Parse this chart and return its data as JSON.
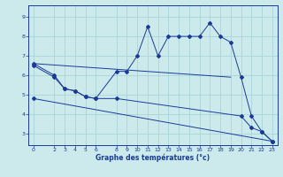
{
  "xlabel": "Graphe des températures (°c)",
  "bg_color": "#cce9ec",
  "grid_color": "#a8d4d8",
  "line_color": "#1a3a9a",
  "xlim": [
    -0.5,
    23.5
  ],
  "ylim": [
    2.4,
    9.6
  ],
  "yticks": [
    3,
    4,
    5,
    6,
    7,
    8,
    9
  ],
  "xticks": [
    0,
    2,
    3,
    4,
    5,
    6,
    8,
    9,
    10,
    11,
    12,
    13,
    14,
    15,
    16,
    17,
    18,
    19,
    20,
    21,
    22,
    23
  ],
  "series1_x": [
    0,
    2,
    3,
    4,
    5,
    6,
    8,
    9,
    10,
    11,
    12,
    13,
    14,
    15,
    16,
    17,
    18,
    19,
    20,
    21,
    22,
    23
  ],
  "series1_y": [
    6.6,
    6.0,
    5.3,
    5.2,
    4.9,
    4.8,
    6.2,
    6.2,
    7.0,
    8.5,
    7.0,
    8.0,
    8.0,
    8.0,
    8.0,
    8.7,
    8.0,
    7.7,
    5.9,
    3.9,
    3.1,
    2.6
  ],
  "series2_x": [
    0,
    19
  ],
  "series2_y": [
    6.6,
    5.9
  ],
  "series3_x": [
    0,
    2,
    3,
    4,
    5,
    6,
    8,
    20,
    21,
    22,
    23
  ],
  "series3_y": [
    6.5,
    5.9,
    5.3,
    5.2,
    4.9,
    4.8,
    4.8,
    3.9,
    3.3,
    3.1,
    2.6
  ],
  "series4_x": [
    0,
    23
  ],
  "series4_y": [
    4.8,
    2.6
  ]
}
